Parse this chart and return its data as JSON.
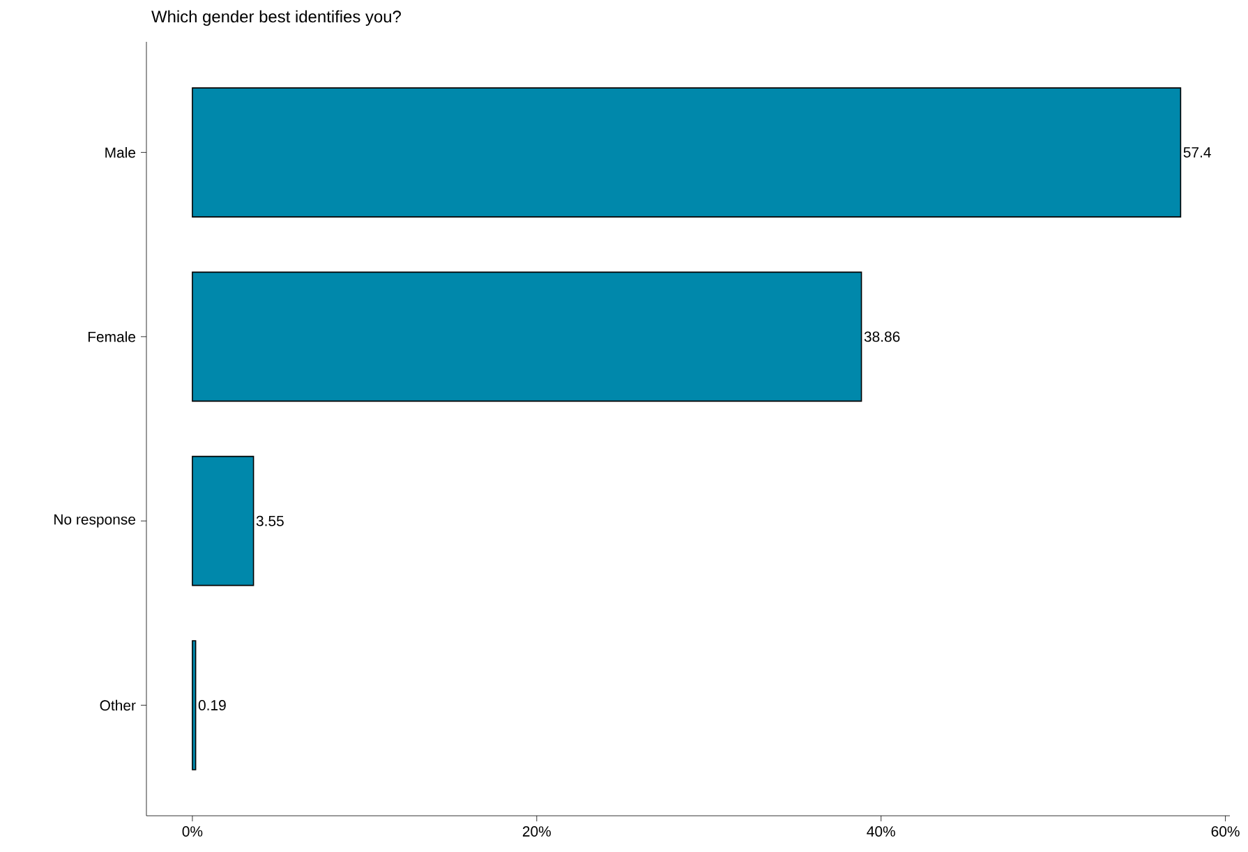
{
  "chart_data": {
    "type": "bar",
    "orientation": "horizontal",
    "title": "Which gender best identifies you?",
    "categories": [
      "Male",
      "Female",
      "No response",
      "Other"
    ],
    "values": [
      57.4,
      38.86,
      3.55,
      0.19
    ],
    "color": "#0088ab",
    "xlim": [
      -2.67,
      60.26
    ],
    "xticks": [
      {
        "value": 0,
        "label": "0%"
      },
      {
        "value": 20,
        "label": "20%"
      },
      {
        "value": 40,
        "label": "40%"
      },
      {
        "value": 60,
        "label": "60%"
      }
    ],
    "data_labels": true
  }
}
